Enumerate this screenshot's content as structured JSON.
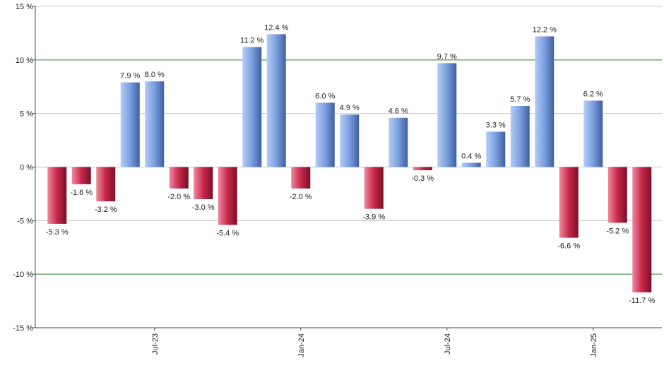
{
  "chart_data": {
    "type": "bar",
    "categories": [
      null,
      null,
      null,
      null,
      "Jul-23",
      null,
      null,
      null,
      null,
      null,
      "Jan-24",
      null,
      null,
      null,
      null,
      null,
      "Jul-24",
      null,
      null,
      null,
      null,
      null,
      "Jan-25",
      null,
      null
    ],
    "values": [
      -5.3,
      -1.6,
      -3.2,
      7.9,
      8.0,
      -2.0,
      -3.0,
      -5.4,
      11.2,
      12.4,
      -2.0,
      6.0,
      4.9,
      -3.9,
      4.6,
      -0.3,
      9.7,
      0.4,
      3.3,
      5.7,
      12.2,
      -6.6,
      6.2,
      -5.2,
      -11.7
    ],
    "value_labels": [
      "-5.3 %",
      "-1.6 %",
      "-3.2 %",
      "7.9 %",
      "8.0 %",
      "-2.0 %",
      "-3.0 %",
      "-5.4 %",
      "11.2 %",
      "12.4 %",
      "-2.0 %",
      "6.0 %",
      "4.9 %",
      "-3.9 %",
      "4.6 %",
      "-0.3 %",
      "9.7 %",
      "0.4 %",
      "3.3 %",
      "5.7 %",
      "12.2 %",
      "-6.6 %",
      "6.2 %",
      "-5.2 %",
      "-11.7 %"
    ],
    "ylim": [
      -15,
      15
    ],
    "yticks": [
      {
        "value": -15,
        "label": "-15 %"
      },
      {
        "value": -10,
        "label": "-10 %"
      },
      {
        "value": -5,
        "label": "-5 %"
      },
      {
        "value": 0,
        "label": "0 %"
      },
      {
        "value": 5,
        "label": "5 %"
      },
      {
        "value": 10,
        "label": "10 %"
      },
      {
        "value": 15,
        "label": "15 %"
      }
    ],
    "grid": true,
    "grid_colors": [
      "#c8c8c8",
      "#2e7d2e",
      "#c8c8c8",
      "#c8c8c8",
      "#c8c8c8",
      "#2e7d2e",
      "#c8c8c8"
    ],
    "positive_gradient": [
      "#b4cdf8",
      "#7b9ee0",
      "#3f5f9e"
    ],
    "negative_gradient": [
      "#f08aa0",
      "#c8284a",
      "#7a1028"
    ]
  }
}
